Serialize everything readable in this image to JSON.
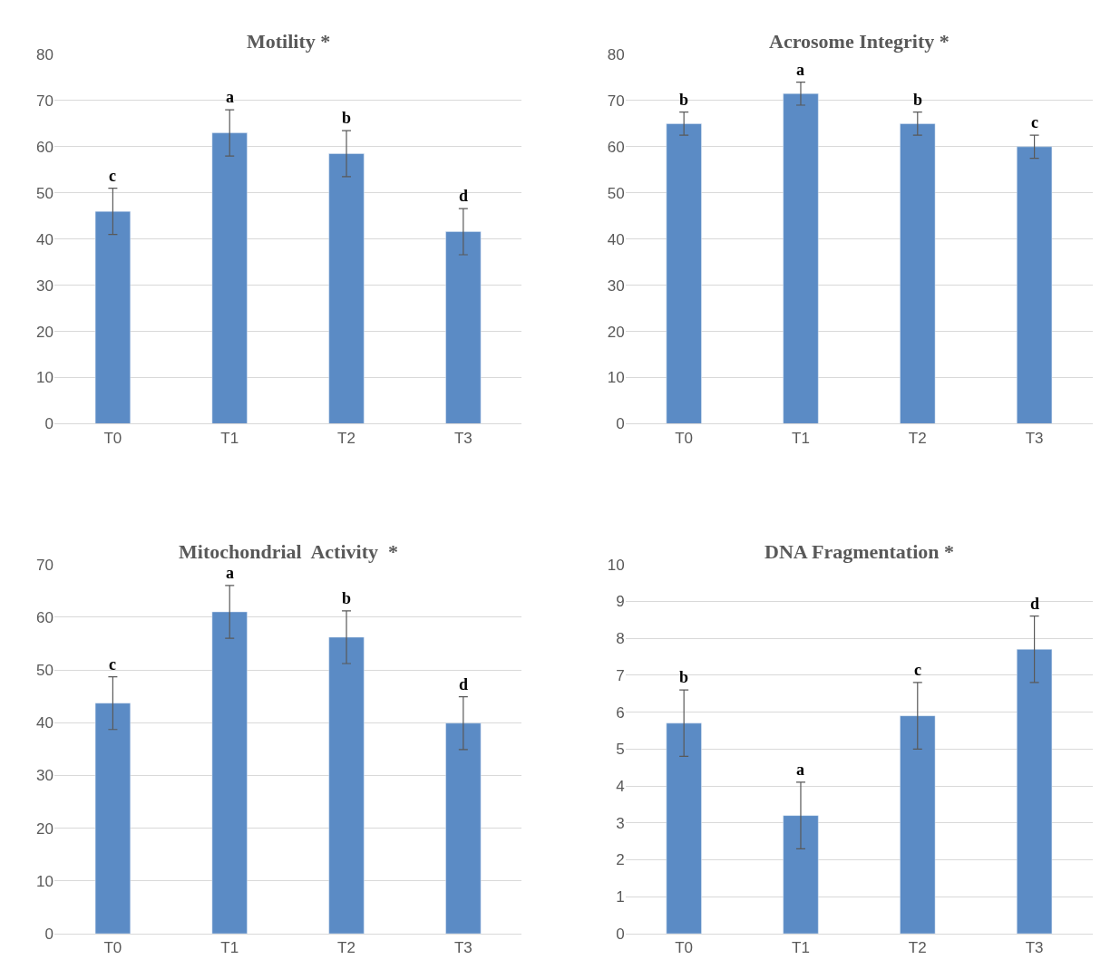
{
  "chart_data": [
    {
      "type": "bar",
      "title": "Motility *",
      "categories": [
        "T0",
        "T1",
        "T2",
        "T3"
      ],
      "values": [
        46,
        63,
        58.5,
        41.6
      ],
      "errors": [
        5,
        5,
        5,
        5
      ],
      "color": "#5b8bc5",
      "ylim": [
        0,
        80
      ],
      "yticks": [
        0,
        10,
        20,
        30,
        40,
        50,
        60,
        70,
        80
      ],
      "grid": "y",
      "annotations": [
        {
          "text": "c",
          "x": "T0",
          "y": 51
        },
        {
          "text": "a",
          "x": "T1",
          "y": 68
        },
        {
          "text": "b",
          "x": "T2",
          "y": 63.5
        },
        {
          "text": "d",
          "x": "T3",
          "y": 46.6
        }
      ]
    },
    {
      "type": "bar",
      "title": "Acrosome Integrity *",
      "categories": [
        "T0",
        "T1",
        "T2",
        "T3"
      ],
      "values": [
        65,
        71.5,
        65,
        60
      ],
      "errors": [
        2.5,
        2.5,
        2.5,
        2.5
      ],
      "color": "#5b8bc5",
      "ylim": [
        0,
        80
      ],
      "yticks": [
        0,
        10,
        20,
        30,
        40,
        50,
        60,
        70,
        80
      ],
      "grid": "y",
      "annotations": [
        {
          "text": "b",
          "x": "T0",
          "y": 67.5
        },
        {
          "text": "a",
          "x": "T1",
          "y": 74
        },
        {
          "text": "b",
          "x": "T2",
          "y": 67.5
        },
        {
          "text": "c",
          "x": "T3",
          "y": 62.5
        }
      ]
    },
    {
      "type": "bar",
      "title": "Mitochondrial  Activity  *",
      "categories": [
        "T0",
        "T1",
        "T2",
        "T3"
      ],
      "values": [
        43.7,
        61,
        56.2,
        39.9
      ],
      "errors": [
        5,
        5,
        5,
        5
      ],
      "color": "#5b8bc5",
      "ylim": [
        0,
        70
      ],
      "yticks": [
        0,
        10,
        20,
        30,
        40,
        50,
        60,
        70
      ],
      "grid": "y",
      "annotations": [
        {
          "text": "c",
          "x": "T0",
          "y": 48.7
        },
        {
          "text": "a",
          "x": "T1",
          "y": 66
        },
        {
          "text": "b",
          "x": "T2",
          "y": 61.2
        },
        {
          "text": "d",
          "x": "T3",
          "y": 44.9
        }
      ]
    },
    {
      "type": "bar",
      "title": "DNA Fragmentation *",
      "categories": [
        "T0",
        "T1",
        "T2",
        "T3"
      ],
      "values": [
        5.7,
        3.2,
        5.9,
        7.7
      ],
      "errors": [
        0.9,
        0.9,
        0.9,
        0.9
      ],
      "color": "#5b8bc5",
      "ylim": [
        0,
        10
      ],
      "yticks": [
        0,
        1,
        2,
        3,
        4,
        5,
        6,
        7,
        8,
        9,
        10
      ],
      "grid": "y",
      "annotations": [
        {
          "text": "b",
          "x": "T0",
          "y": 6.6
        },
        {
          "text": "a",
          "x": "T1",
          "y": 4.1
        },
        {
          "text": "c",
          "x": "T2",
          "y": 6.8
        },
        {
          "text": "d",
          "x": "T3",
          "y": 8.6
        }
      ]
    }
  ]
}
